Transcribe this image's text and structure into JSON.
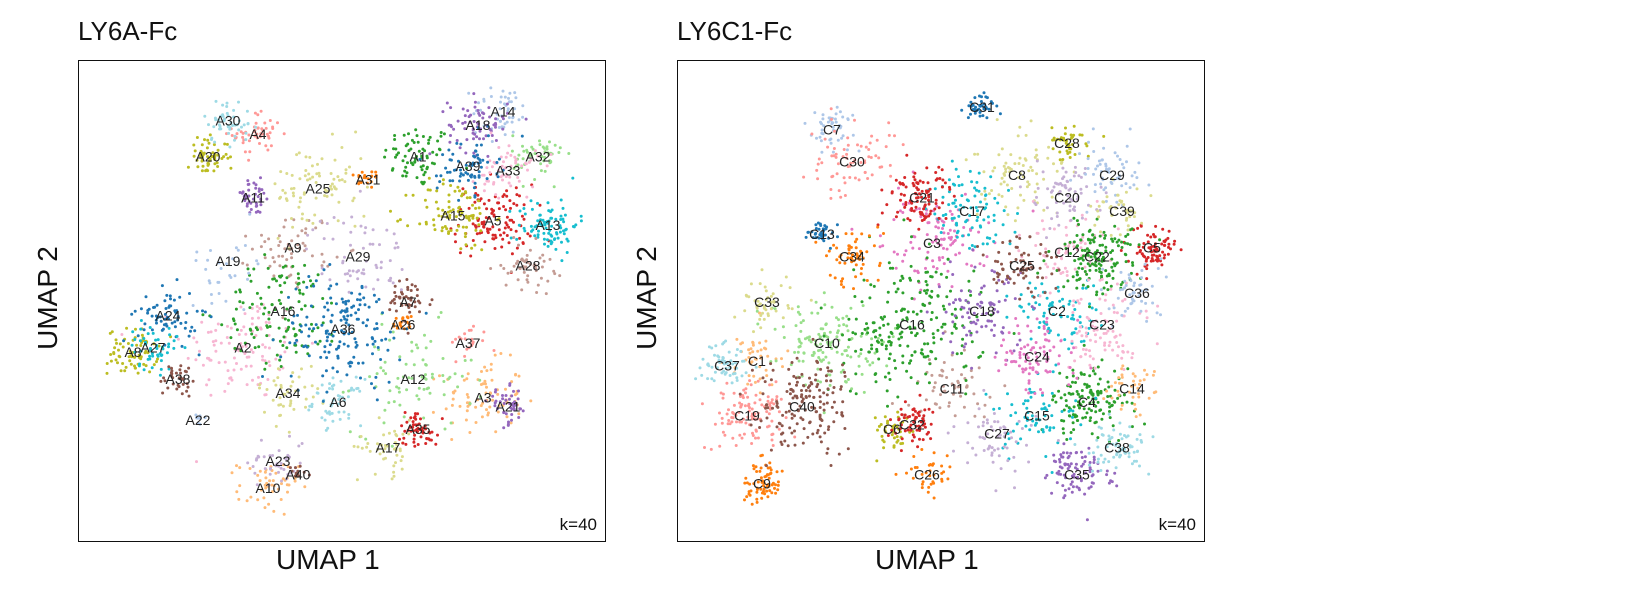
{
  "chart_data": [
    {
      "type": "scatter",
      "title": "LY6A-Fc",
      "xlabel": "UMAP 1",
      "ylabel": "UMAP 2",
      "annotation": "k=40",
      "clusters": [
        {
          "label": "A1",
          "x": 0.65,
          "y": 0.82,
          "color": "#2ca02c",
          "n": 70,
          "sd": 0.035
        },
        {
          "label": "A2",
          "x": 0.3,
          "y": 0.4,
          "color": "#f7b6d2",
          "n": 110,
          "sd": 0.06
        },
        {
          "label": "A3",
          "x": 0.78,
          "y": 0.29,
          "color": "#ffbb78",
          "n": 80,
          "sd": 0.04
        },
        {
          "label": "A4",
          "x": 0.33,
          "y": 0.87,
          "color": "#ff9896",
          "n": 50,
          "sd": 0.025
        },
        {
          "label": "A5",
          "x": 0.8,
          "y": 0.68,
          "color": "#d62728",
          "n": 110,
          "sd": 0.04
        },
        {
          "label": "A6",
          "x": 0.49,
          "y": 0.28,
          "color": "#9edae5",
          "n": 50,
          "sd": 0.025
        },
        {
          "label": "A7",
          "x": 0.63,
          "y": 0.5,
          "color": "#8c564b",
          "n": 45,
          "sd": 0.025
        },
        {
          "label": "A8",
          "x": 0.08,
          "y": 0.39,
          "color": "#bcbd22",
          "n": 70,
          "sd": 0.025
        },
        {
          "label": "A9",
          "x": 0.4,
          "y": 0.62,
          "color": "#c49c94",
          "n": 60,
          "sd": 0.04
        },
        {
          "label": "A10",
          "x": 0.35,
          "y": 0.09,
          "color": "#ffbb78",
          "n": 50,
          "sd": 0.03
        },
        {
          "label": "A11",
          "x": 0.32,
          "y": 0.73,
          "color": "#9467bd",
          "n": 40,
          "sd": 0.02
        },
        {
          "label": "A12",
          "x": 0.64,
          "y": 0.33,
          "color": "#98df8a",
          "n": 80,
          "sd": 0.06
        },
        {
          "label": "A13",
          "x": 0.91,
          "y": 0.67,
          "color": "#17becf",
          "n": 90,
          "sd": 0.03
        },
        {
          "label": "A14",
          "x": 0.82,
          "y": 0.92,
          "color": "#aec7e8",
          "n": 50,
          "sd": 0.03
        },
        {
          "label": "A15",
          "x": 0.72,
          "y": 0.69,
          "color": "#bcbd22",
          "n": 90,
          "sd": 0.04
        },
        {
          "label": "A16",
          "x": 0.38,
          "y": 0.48,
          "color": "#2ca02c",
          "n": 120,
          "sd": 0.06
        },
        {
          "label": "A17",
          "x": 0.59,
          "y": 0.18,
          "color": "#dbdb8d",
          "n": 45,
          "sd": 0.03
        },
        {
          "label": "A18",
          "x": 0.77,
          "y": 0.89,
          "color": "#9467bd",
          "n": 70,
          "sd": 0.03
        },
        {
          "label": "A19",
          "x": 0.27,
          "y": 0.59,
          "color": "#aec7e8",
          "n": 30,
          "sd": 0.04
        },
        {
          "label": "A20",
          "x": 0.23,
          "y": 0.82,
          "color": "#bcbd22",
          "n": 60,
          "sd": 0.02
        },
        {
          "label": "A21",
          "x": 0.83,
          "y": 0.27,
          "color": "#9467bd",
          "n": 45,
          "sd": 0.02
        },
        {
          "label": "A22",
          "x": 0.21,
          "y": 0.24,
          "color": "#aec7e8",
          "n": 8,
          "sd": 0.008
        },
        {
          "label": "A23",
          "x": 0.37,
          "y": 0.15,
          "color": "#c5b0d5",
          "n": 40,
          "sd": 0.03
        },
        {
          "label": "A24",
          "x": 0.15,
          "y": 0.47,
          "color": "#1f77b4",
          "n": 70,
          "sd": 0.03
        },
        {
          "label": "A25",
          "x": 0.45,
          "y": 0.75,
          "color": "#dbdb8d",
          "n": 80,
          "sd": 0.05
        },
        {
          "label": "A26",
          "x": 0.62,
          "y": 0.45,
          "color": "#ff7f0e",
          "n": 20,
          "sd": 0.01
        },
        {
          "label": "A27",
          "x": 0.12,
          "y": 0.4,
          "color": "#17becf",
          "n": 50,
          "sd": 0.025
        },
        {
          "label": "A28",
          "x": 0.87,
          "y": 0.58,
          "color": "#c49c94",
          "n": 50,
          "sd": 0.025
        },
        {
          "label": "A29",
          "x": 0.53,
          "y": 0.6,
          "color": "#c5b0d5",
          "n": 60,
          "sd": 0.05
        },
        {
          "label": "A30",
          "x": 0.27,
          "y": 0.9,
          "color": "#9edae5",
          "n": 50,
          "sd": 0.025
        },
        {
          "label": "A31",
          "x": 0.55,
          "y": 0.77,
          "color": "#ff7f0e",
          "n": 20,
          "sd": 0.015
        },
        {
          "label": "A32",
          "x": 0.89,
          "y": 0.82,
          "color": "#98df8a",
          "n": 50,
          "sd": 0.025
        },
        {
          "label": "A33",
          "x": 0.83,
          "y": 0.79,
          "color": "#f7b6d2",
          "n": 60,
          "sd": 0.03
        },
        {
          "label": "A34",
          "x": 0.39,
          "y": 0.3,
          "color": "#dbdb8d",
          "n": 40,
          "sd": 0.03
        },
        {
          "label": "A35",
          "x": 0.65,
          "y": 0.22,
          "color": "#d62728",
          "n": 55,
          "sd": 0.02
        },
        {
          "label": "A36",
          "x": 0.5,
          "y": 0.44,
          "color": "#1f77b4",
          "n": 160,
          "sd": 0.06
        },
        {
          "label": "A37",
          "x": 0.75,
          "y": 0.41,
          "color": "#ff9896",
          "n": 20,
          "sd": 0.02
        },
        {
          "label": "A38",
          "x": 0.17,
          "y": 0.33,
          "color": "#8c564b",
          "n": 35,
          "sd": 0.02
        },
        {
          "label": "A39",
          "x": 0.75,
          "y": 0.8,
          "color": "#1f77b4",
          "n": 70,
          "sd": 0.03
        },
        {
          "label": "A40",
          "x": 0.41,
          "y": 0.12,
          "color": "#8c564b",
          "n": 12,
          "sd": 0.01
        }
      ]
    },
    {
      "type": "scatter",
      "title": "LY6C1-Fc",
      "xlabel": "UMAP 1",
      "ylabel": "UMAP 2",
      "annotation": "k=40",
      "clusters": [
        {
          "label": "C1",
          "x": 0.13,
          "y": 0.37,
          "color": "#ffbb78",
          "n": 45,
          "sd": 0.03
        },
        {
          "label": "C2",
          "x": 0.73,
          "y": 0.48,
          "color": "#17becf",
          "n": 80,
          "sd": 0.04
        },
        {
          "label": "C3",
          "x": 0.48,
          "y": 0.63,
          "color": "#e377c2",
          "n": 110,
          "sd": 0.05
        },
        {
          "label": "C4",
          "x": 0.79,
          "y": 0.28,
          "color": "#2ca02c",
          "n": 140,
          "sd": 0.04
        },
        {
          "label": "C5",
          "x": 0.92,
          "y": 0.62,
          "color": "#d62728",
          "n": 80,
          "sd": 0.025
        },
        {
          "label": "C6",
          "x": 0.4,
          "y": 0.22,
          "color": "#bcbd22",
          "n": 40,
          "sd": 0.025
        },
        {
          "label": "C7",
          "x": 0.28,
          "y": 0.88,
          "color": "#aec7e8",
          "n": 50,
          "sd": 0.025
        },
        {
          "label": "C8",
          "x": 0.65,
          "y": 0.78,
          "color": "#dbdb8d",
          "n": 80,
          "sd": 0.05
        },
        {
          "label": "C9",
          "x": 0.14,
          "y": 0.1,
          "color": "#ff7f0e",
          "n": 70,
          "sd": 0.025
        },
        {
          "label": "C10",
          "x": 0.27,
          "y": 0.41,
          "color": "#98df8a",
          "n": 140,
          "sd": 0.05
        },
        {
          "label": "C11",
          "x": 0.52,
          "y": 0.31,
          "color": "#c49c94",
          "n": 60,
          "sd": 0.04
        },
        {
          "label": "C12",
          "x": 0.75,
          "y": 0.61,
          "color": "#f7b6d2",
          "n": 70,
          "sd": 0.04
        },
        {
          "label": "C13",
          "x": 0.26,
          "y": 0.65,
          "color": "#1f77b4",
          "n": 35,
          "sd": 0.015
        },
        {
          "label": "C14",
          "x": 0.88,
          "y": 0.31,
          "color": "#ffbb78",
          "n": 40,
          "sd": 0.03
        },
        {
          "label": "C15",
          "x": 0.69,
          "y": 0.25,
          "color": "#17becf",
          "n": 70,
          "sd": 0.04
        },
        {
          "label": "C16",
          "x": 0.44,
          "y": 0.45,
          "color": "#2ca02c",
          "n": 220,
          "sd": 0.07
        },
        {
          "label": "C17",
          "x": 0.56,
          "y": 0.7,
          "color": "#17becf",
          "n": 90,
          "sd": 0.045
        },
        {
          "label": "C18",
          "x": 0.58,
          "y": 0.48,
          "color": "#9467bd",
          "n": 90,
          "sd": 0.05
        },
        {
          "label": "C19",
          "x": 0.11,
          "y": 0.25,
          "color": "#ff9896",
          "n": 110,
          "sd": 0.04
        },
        {
          "label": "C20",
          "x": 0.75,
          "y": 0.73,
          "color": "#c5b0d5",
          "n": 70,
          "sd": 0.035
        },
        {
          "label": "C21",
          "x": 0.46,
          "y": 0.73,
          "color": "#d62728",
          "n": 100,
          "sd": 0.03
        },
        {
          "label": "C22",
          "x": 0.81,
          "y": 0.6,
          "color": "#2ca02c",
          "n": 150,
          "sd": 0.04
        },
        {
          "label": "C23",
          "x": 0.82,
          "y": 0.45,
          "color": "#f7b6d2",
          "n": 90,
          "sd": 0.045
        },
        {
          "label": "C24",
          "x": 0.69,
          "y": 0.38,
          "color": "#e377c2",
          "n": 90,
          "sd": 0.04
        },
        {
          "label": "C25",
          "x": 0.66,
          "y": 0.58,
          "color": "#8c564b",
          "n": 70,
          "sd": 0.035
        },
        {
          "label": "C26",
          "x": 0.47,
          "y": 0.12,
          "color": "#ff7f0e",
          "n": 35,
          "sd": 0.025
        },
        {
          "label": "C27",
          "x": 0.61,
          "y": 0.21,
          "color": "#c5b0d5",
          "n": 60,
          "sd": 0.04
        },
        {
          "label": "C28",
          "x": 0.75,
          "y": 0.85,
          "color": "#bcbd22",
          "n": 40,
          "sd": 0.02
        },
        {
          "label": "C29",
          "x": 0.84,
          "y": 0.78,
          "color": "#aec7e8",
          "n": 60,
          "sd": 0.035
        },
        {
          "label": "C30",
          "x": 0.32,
          "y": 0.81,
          "color": "#ff9896",
          "n": 70,
          "sd": 0.04
        },
        {
          "label": "C31",
          "x": 0.58,
          "y": 0.93,
          "color": "#1f77b4",
          "n": 40,
          "sd": 0.015
        },
        {
          "label": "C32",
          "x": 0.44,
          "y": 0.23,
          "color": "#d62728",
          "n": 60,
          "sd": 0.025
        },
        {
          "label": "C33",
          "x": 0.15,
          "y": 0.5,
          "color": "#dbdb8d",
          "n": 45,
          "sd": 0.03
        },
        {
          "label": "C34",
          "x": 0.32,
          "y": 0.6,
          "color": "#ff7f0e",
          "n": 60,
          "sd": 0.035
        },
        {
          "label": "C35",
          "x": 0.77,
          "y": 0.12,
          "color": "#9467bd",
          "n": 90,
          "sd": 0.03
        },
        {
          "label": "C36",
          "x": 0.89,
          "y": 0.52,
          "color": "#aec7e8",
          "n": 50,
          "sd": 0.03
        },
        {
          "label": "C37",
          "x": 0.07,
          "y": 0.36,
          "color": "#9edae5",
          "n": 60,
          "sd": 0.025
        },
        {
          "label": "C38",
          "x": 0.85,
          "y": 0.18,
          "color": "#9edae5",
          "n": 70,
          "sd": 0.03
        },
        {
          "label": "C39",
          "x": 0.86,
          "y": 0.7,
          "color": "#dbdb8d",
          "n": 40,
          "sd": 0.025
        },
        {
          "label": "C40",
          "x": 0.22,
          "y": 0.27,
          "color": "#8c564b",
          "n": 160,
          "sd": 0.05
        }
      ]
    }
  ]
}
